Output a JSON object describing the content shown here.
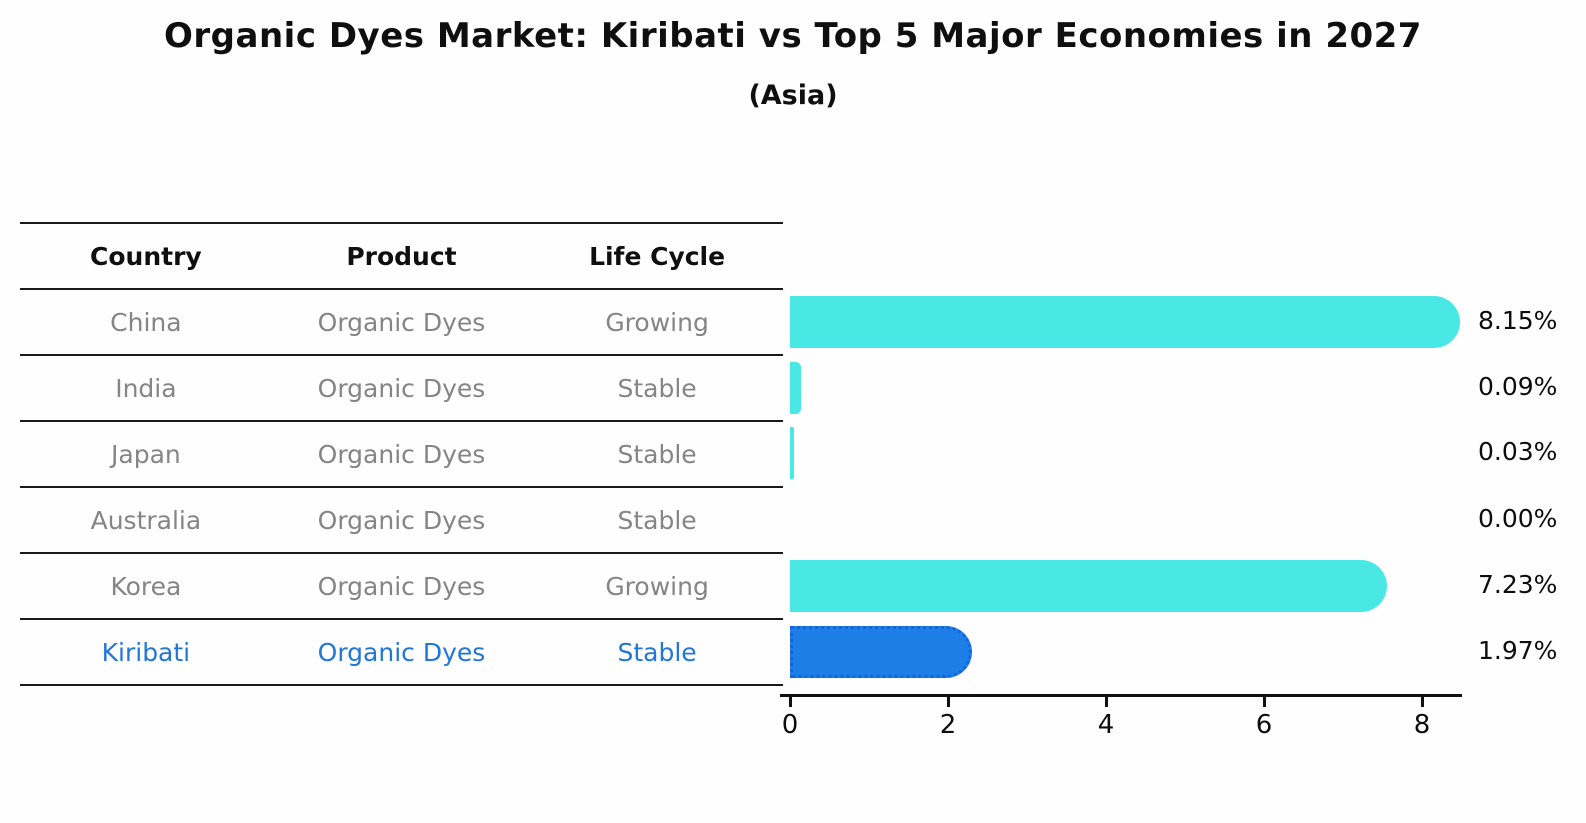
{
  "title": "Organic Dyes Market: Kiribati vs Top 5 Major Economies in 2027",
  "subtitle": "(Asia)",
  "table": {
    "columns": [
      "Country",
      "Product",
      "Life Cycle"
    ]
  },
  "chart_data": {
    "type": "bar",
    "orientation": "horizontal",
    "title": "Organic Dyes Market: Kiribati vs Top 5 Major Economies in 2027",
    "subtitle": "(Asia)",
    "xlabel": "",
    "ylabel": "",
    "x_ticks": [
      0,
      2,
      4,
      6,
      8
    ],
    "xlim": [
      0,
      8.5
    ],
    "grid": false,
    "legend": false,
    "rows": [
      {
        "country": "China",
        "product": "Organic Dyes",
        "life_cycle": "Growing",
        "value": 8.15,
        "label": "8.15%",
        "highlight": false
      },
      {
        "country": "India",
        "product": "Organic Dyes",
        "life_cycle": "Stable",
        "value": 0.09,
        "label": "0.09%",
        "highlight": false
      },
      {
        "country": "Japan",
        "product": "Organic Dyes",
        "life_cycle": "Stable",
        "value": 0.03,
        "label": "0.03%",
        "highlight": false
      },
      {
        "country": "Australia",
        "product": "Organic Dyes",
        "life_cycle": "Stable",
        "value": 0.0,
        "label": "0.00%",
        "highlight": false
      },
      {
        "country": "Korea",
        "product": "Organic Dyes",
        "life_cycle": "Growing",
        "value": 7.23,
        "label": "7.23%",
        "highlight": false
      },
      {
        "country": "Kiribati",
        "product": "Organic Dyes",
        "life_cycle": "Stable",
        "value": 1.97,
        "label": "1.97%",
        "highlight": true
      }
    ],
    "colors": {
      "bar": "#4AE8E4",
      "highlight_bar": "#1E7EE8",
      "highlight_bar_border": "#1565D8",
      "highlight_text": "#2176D9",
      "text": "#0f0f0f",
      "muted_text": "#858585"
    }
  }
}
